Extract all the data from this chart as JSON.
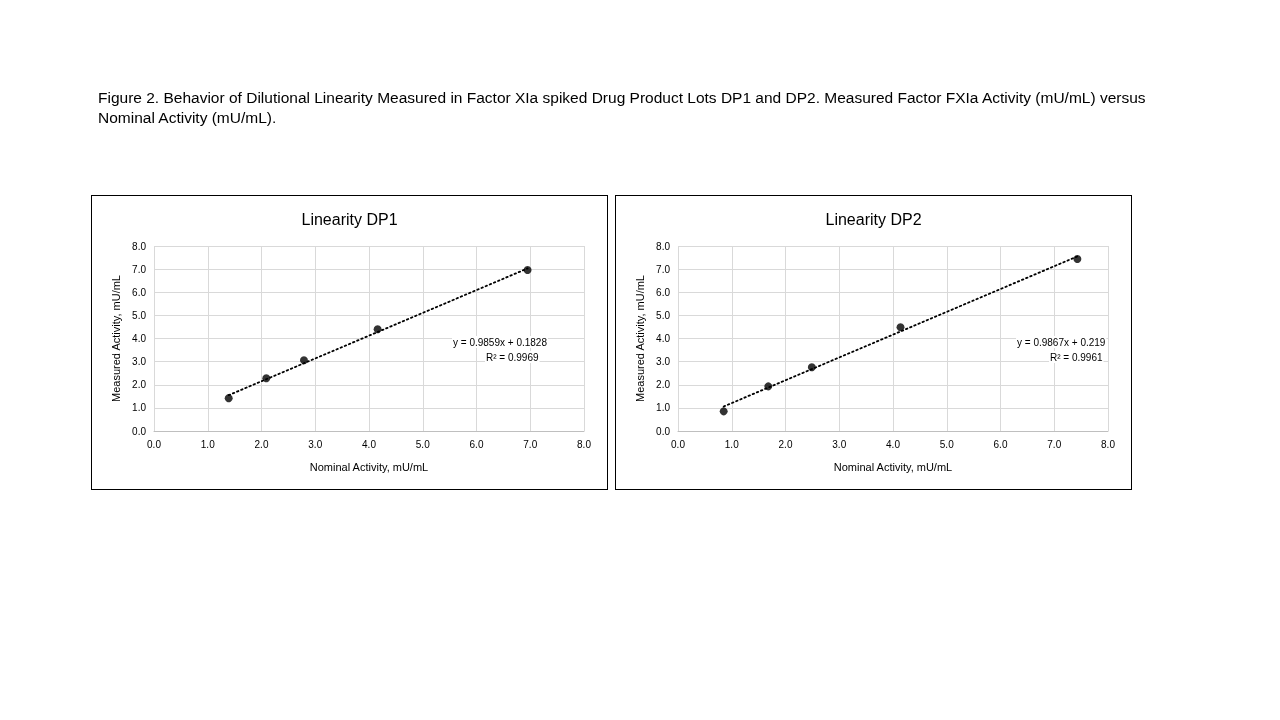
{
  "chart_data": [
    {
      "type": "scatter",
      "title": "Linearity DP1",
      "xlabel": "Nominal Activity, mU/mL",
      "ylabel": "Measured Activity, mU/mL",
      "annotations": [
        "Figure 2.  Behavior of Dilutional Linearity Measured in Factor XIa spiked Drug Product Lots DP1 and DP2.  Measured Factor FXIa Activity (mU/mL) versus Nominal Activity (mU/mL).",
        "y = 0.9859x + 0.1828",
        "R² = 0.9969"
      ],
      "series": [
        {
          "type": "scatter",
          "color": "#000000",
          "marker": "circle",
          "x": [
            1.39,
            2.09,
            2.79,
            4.16,
            6.95
          ],
          "values": [
            1.42,
            2.28,
            3.06,
            4.4,
            6.96
          ]
        },
        {
          "type": "line",
          "color": "#000000",
          "marker": "none",
          "line_style": "dotted",
          "x": [
            1.39,
            6.95
          ],
          "values": [
            1.55,
            7.03
          ]
        }
      ],
      "xlim": [
        0,
        8
      ],
      "ylim": [
        0,
        8
      ],
      "xticks": [
        {
          "value": 0,
          "label": "0.0"
        },
        {
          "value": 1,
          "label": "1.0"
        },
        {
          "value": 2,
          "label": "2.0"
        },
        {
          "value": 3,
          "label": "3.0"
        },
        {
          "value": 4,
          "label": "4.0"
        },
        {
          "value": 5,
          "label": "5.0"
        },
        {
          "value": 6,
          "label": "6.0"
        },
        {
          "value": 7,
          "label": "7.0"
        },
        {
          "value": 8,
          "label": "8.0"
        }
      ],
      "yticks": [
        {
          "value": 0,
          "label": "0.0"
        },
        {
          "value": 1,
          "label": "1.0"
        },
        {
          "value": 2,
          "label": "2.0"
        },
        {
          "value": 3,
          "label": "3.0"
        },
        {
          "value": 4,
          "label": "4.0"
        },
        {
          "value": 5,
          "label": "5.0"
        },
        {
          "value": 6,
          "label": "6.0"
        },
        {
          "value": 7,
          "label": "7.0"
        },
        {
          "value": 8,
          "label": "8.0"
        }
      ],
      "grid": true
    },
    {
      "type": "scatter",
      "title": "Linearity DP2",
      "xlabel": "Nominal Activity, mU/mL",
      "ylabel": "Measured Activity, mU/mL",
      "annotations": [
        "y = 0.9867x + 0.219",
        "R² = 0.9961"
      ],
      "series": [
        {
          "type": "scatter",
          "color": "#000000",
          "marker": "circle",
          "x": [
            0.85,
            1.68,
            2.49,
            4.14,
            7.43
          ],
          "values": [
            0.85,
            1.93,
            2.76,
            4.49,
            7.44
          ]
        },
        {
          "type": "line",
          "color": "#000000",
          "marker": "none",
          "line_style": "dotted",
          "x": [
            0.85,
            7.43
          ],
          "values": [
            1.06,
            7.55
          ]
        }
      ],
      "xlim": [
        0,
        8
      ],
      "ylim": [
        0,
        8
      ],
      "xticks": [
        {
          "value": 0,
          "label": "0.0"
        },
        {
          "value": 1,
          "label": "1.0"
        },
        {
          "value": 2,
          "label": "2.0"
        },
        {
          "value": 3,
          "label": "3.0"
        },
        {
          "value": 4,
          "label": "4.0"
        },
        {
          "value": 5,
          "label": "5.0"
        },
        {
          "value": 6,
          "label": "6.0"
        },
        {
          "value": 7,
          "label": "7.0"
        },
        {
          "value": 8,
          "label": "8.0"
        }
      ],
      "yticks": [
        {
          "value": 0,
          "label": "0.0"
        },
        {
          "value": 1,
          "label": "1.0"
        },
        {
          "value": 2,
          "label": "2.0"
        },
        {
          "value": 3,
          "label": "3.0"
        },
        {
          "value": 4,
          "label": "4.0"
        },
        {
          "value": 5,
          "label": "5.0"
        },
        {
          "value": 6,
          "label": "6.0"
        },
        {
          "value": 7,
          "label": "7.0"
        },
        {
          "value": 8,
          "label": "8.0"
        }
      ],
      "grid": true
    }
  ]
}
